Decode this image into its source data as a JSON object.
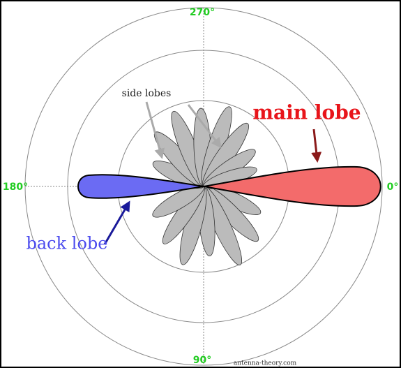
{
  "angles": {
    "top": "270°",
    "right": "0°",
    "bottom": "90°",
    "left": "180°"
  },
  "labels": {
    "side_lobes": "side lobes",
    "main_lobe": "main lobe",
    "back_lobe": "back lobe"
  },
  "credit": "antenna-theory.com"
}
